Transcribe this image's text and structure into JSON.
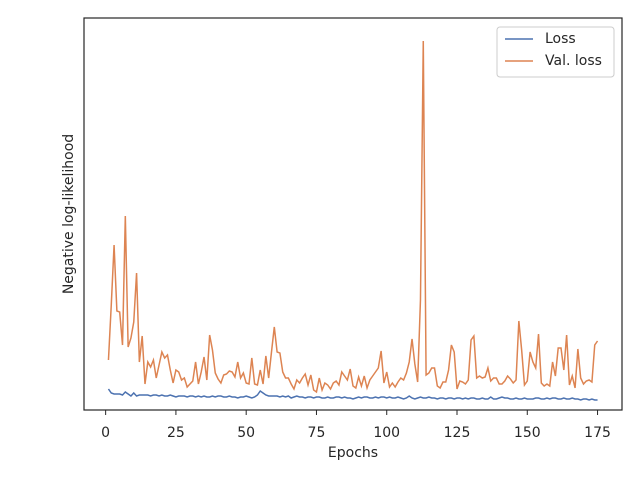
{
  "chart_data": {
    "type": "line",
    "xlabel": "Epochs",
    "ylabel": "Negative log-likelihood",
    "x": [
      1,
      2,
      3,
      4,
      5,
      6,
      7,
      8,
      9,
      10,
      11,
      12,
      13,
      14,
      15,
      16,
      17,
      18,
      19,
      20,
      21,
      22,
      23,
      24,
      25,
      26,
      27,
      28,
      29,
      30,
      31,
      32,
      33,
      34,
      35,
      36,
      37,
      38,
      39,
      40,
      41,
      42,
      43,
      44,
      45,
      46,
      47,
      48,
      49,
      50,
      51,
      52,
      53,
      54,
      55,
      56,
      57,
      58,
      59,
      60,
      61,
      62,
      63,
      64,
      65,
      66,
      67,
      68,
      69,
      70,
      71,
      72,
      73,
      74,
      75,
      76,
      77,
      78,
      79,
      80,
      81,
      82,
      83,
      84,
      85,
      86,
      87,
      88,
      89,
      90,
      91,
      92,
      93,
      94,
      95,
      96,
      97,
      98,
      99,
      100,
      101,
      102,
      103,
      104,
      105,
      106,
      107,
      108,
      109,
      110,
      111,
      112,
      113,
      114,
      115,
      116,
      117,
      118,
      119,
      120,
      121,
      122,
      123,
      124,
      125,
      126,
      127,
      128,
      129,
      130,
      131,
      132,
      133,
      134,
      135,
      136,
      137,
      138,
      139,
      140,
      141,
      142,
      143,
      144,
      145,
      146,
      147,
      148,
      149,
      150,
      151,
      152,
      153,
      154,
      155,
      156,
      157,
      158,
      159,
      160,
      161,
      162,
      163,
      164,
      165,
      166,
      167,
      168,
      169,
      170,
      171,
      172,
      173,
      174,
      175
    ],
    "series": [
      {
        "name": "Loss",
        "color": "#4c72b0",
        "values": [
          21,
          17,
          16,
          16,
          16,
          15,
          18,
          16,
          14,
          17,
          14,
          15,
          15,
          15,
          15,
          14,
          15,
          15,
          14,
          15,
          14,
          14,
          15,
          14,
          13,
          14,
          14,
          14,
          13,
          14,
          14,
          13,
          14,
          13,
          14,
          13,
          13,
          14,
          13,
          14,
          14,
          13,
          13,
          14,
          13,
          13,
          12,
          13,
          13,
          14,
          13,
          12,
          13,
          15,
          19,
          17,
          15,
          14,
          14,
          14,
          14,
          13,
          14,
          13,
          14,
          12,
          13,
          14,
          13,
          13,
          12,
          13,
          13,
          12,
          13,
          13,
          12,
          12,
          13,
          12,
          12,
          13,
          13,
          12,
          13,
          12,
          12,
          11,
          12,
          13,
          12,
          13,
          13,
          12,
          12,
          13,
          12,
          13,
          13,
          12,
          13,
          12,
          12,
          13,
          12,
          11,
          12,
          14,
          12,
          11,
          12,
          13,
          12,
          12,
          13,
          12,
          12,
          11,
          12,
          12,
          11,
          12,
          12,
          11,
          12,
          12,
          11,
          12,
          11,
          12,
          12,
          11,
          11,
          12,
          11,
          11,
          13,
          11,
          11,
          12,
          13,
          12,
          12,
          11,
          11,
          12,
          11,
          11,
          12,
          11,
          11,
          11,
          12,
          12,
          11,
          11,
          12,
          11,
          12,
          12,
          11,
          11,
          12,
          11,
          11,
          12,
          11,
          11,
          10,
          11,
          11,
          10,
          11,
          10,
          10
        ]
      },
      {
        "name": "Val. loss",
        "color": "#dd8452",
        "values": [
          50,
          105,
          165,
          99,
          98,
          65,
          194,
          63,
          72,
          88,
          137,
          48,
          74,
          26,
          48,
          43,
          50,
          32,
          45,
          58,
          52,
          55,
          40,
          27,
          40,
          38,
          30,
          32,
          23,
          26,
          29,
          48,
          26,
          38,
          53,
          30,
          75,
          60,
          37,
          31,
          27,
          35,
          36,
          39,
          38,
          33,
          48,
          32,
          37,
          27,
          26,
          52,
          26,
          25,
          40,
          26,
          54,
          32,
          58,
          83,
          58,
          57,
          38,
          32,
          32,
          26,
          21,
          30,
          27,
          32,
          36,
          25,
          35,
          20,
          18,
          32,
          20,
          27,
          25,
          21,
          27,
          29,
          25,
          38,
          34,
          30,
          41,
          24,
          22,
          33,
          24,
          34,
          22,
          30,
          34,
          38,
          42,
          59,
          27,
          38,
          23,
          27,
          23,
          28,
          32,
          30,
          37,
          48,
          71,
          46,
          28,
          110,
          369,
          35,
          37,
          42,
          42,
          24,
          22,
          28,
          28,
          40,
          65,
          58,
          21,
          29,
          28,
          26,
          30,
          70,
          74,
          32,
          34,
          32,
          33,
          42,
          29,
          32,
          32,
          26,
          26,
          29,
          34,
          31,
          27,
          30,
          89,
          60,
          25,
          29,
          58,
          48,
          42,
          76,
          27,
          24,
          26,
          24,
          48,
          34,
          62,
          62,
          40,
          75,
          25,
          34,
          22,
          61,
          32,
          26,
          29,
          30,
          28,
          65,
          69
        ]
      }
    ],
    "xlim": [
      -7.7,
      183.7
    ],
    "xticks": [
      0,
      25,
      50,
      75,
      100,
      125,
      150,
      175
    ],
    "ylim": [
      0,
      392
    ],
    "legend": "upper right"
  }
}
